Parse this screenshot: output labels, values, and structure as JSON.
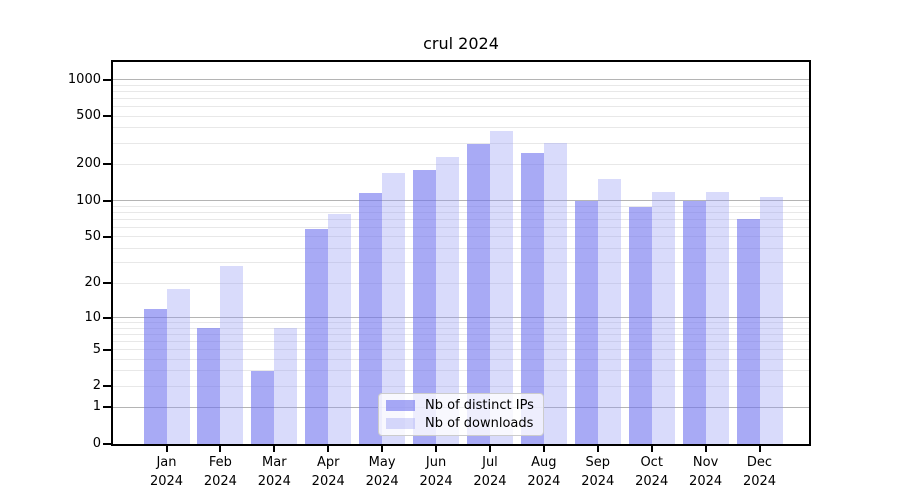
{
  "title": "crul 2024",
  "chart_data": {
    "type": "bar",
    "title": "crul 2024",
    "categories": [
      "Jan 2024",
      "Feb 2024",
      "Mar 2024",
      "Apr 2024",
      "May 2024",
      "Jun 2024",
      "Jul 2024",
      "Aug 2024",
      "Sep 2024",
      "Oct 2024",
      "Nov 2024",
      "Dec 2024"
    ],
    "series": [
      {
        "name": "Nb of distinct IPs",
        "values": [
          12,
          8,
          3,
          58,
          115,
          180,
          295,
          250,
          100,
          88,
          100,
          70
        ]
      },
      {
        "name": "Nb of downloads",
        "values": [
          18,
          28,
          8,
          78,
          170,
          230,
          375,
          300,
          150,
          118,
          118,
          107
        ]
      }
    ],
    "xlabel": "",
    "ylabel": "",
    "yscale": "log1p",
    "yticks": [
      0,
      1,
      2,
      5,
      10,
      20,
      50,
      100,
      200,
      500,
      1000
    ],
    "ylim": [
      0,
      1400
    ],
    "grid": true,
    "legend_position": "lower center"
  },
  "colors": {
    "bar_ips": "#a8aaf5",
    "bar_ips_rgba": "rgba(110,113,238,0.6)",
    "bar_downloads": "#d9dbfa",
    "bar_downloads_rgba": "rgba(146,152,243,0.35)",
    "grid_major": "#b4b4b4",
    "grid_minor": "#e8e8e8",
    "axis": "#000000",
    "legend_bg": "rgba(255,255,255,0.8)",
    "legend_border": "#cccccc"
  }
}
